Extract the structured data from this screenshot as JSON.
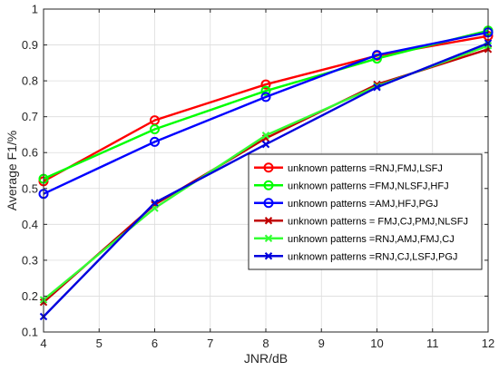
{
  "chart_data": {
    "type": "line",
    "xlabel": "JNR/dB",
    "ylabel": "Average F1/%",
    "xlim": [
      4,
      12
    ],
    "ylim": [
      0.1,
      1
    ],
    "xticks": [
      4,
      5,
      6,
      7,
      8,
      9,
      10,
      11,
      12
    ],
    "yticks": [
      0.1,
      0.2,
      0.3,
      0.4,
      0.5,
      0.6,
      0.7,
      0.8,
      0.9,
      1
    ],
    "grid": true,
    "legend_position": "right",
    "x": [
      4,
      6,
      8,
      10,
      12
    ],
    "series": [
      {
        "name": "unknown patterns =RNJ,FMJ,LSFJ",
        "color": "#ff0000",
        "marker": "circle",
        "values": [
          0.52,
          0.69,
          0.79,
          0.87,
          0.925
        ]
      },
      {
        "name": "unknown patterns =FMJ,NLSFJ,HFJ",
        "color": "#00ff00",
        "marker": "circle",
        "values": [
          0.527,
          0.665,
          0.772,
          0.862,
          0.94
        ]
      },
      {
        "name": "unknown patterns =AMJ,HFJ,PGJ",
        "color": "#0000ff",
        "marker": "circle",
        "values": [
          0.485,
          0.63,
          0.755,
          0.872,
          0.935
        ]
      },
      {
        "name": "unknown patterns = FMJ,CJ,PMJ,NLSFJ",
        "color": "#c00000",
        "marker": "x",
        "values": [
          0.183,
          0.455,
          0.64,
          0.79,
          0.888
        ]
      },
      {
        "name": "unknown patterns =RNJ,AMJ,FMJ,CJ",
        "color": "#33ff33",
        "marker": "x",
        "values": [
          0.19,
          0.445,
          0.648,
          0.785,
          0.898
        ]
      },
      {
        "name": "unknown patterns =RNJ,CJ,LSFJ,PGJ",
        "color": "#0000dd",
        "marker": "x",
        "values": [
          0.143,
          0.46,
          0.623,
          0.782,
          0.905
        ]
      }
    ]
  }
}
